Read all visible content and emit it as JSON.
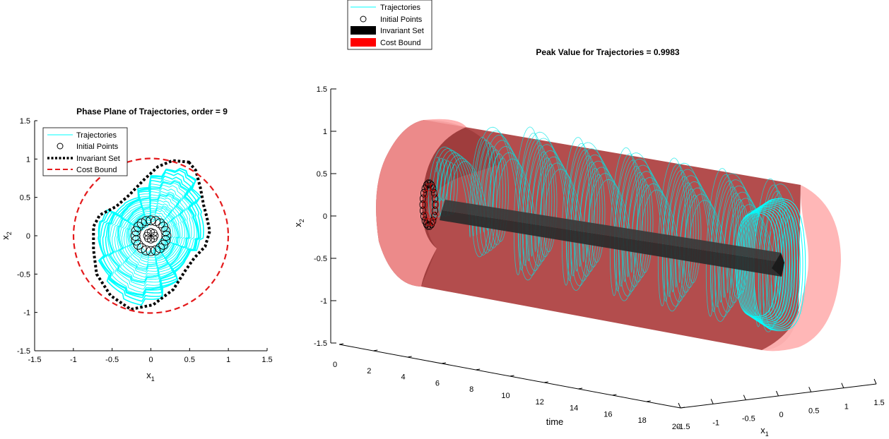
{
  "chart_data": [
    {
      "type": "line",
      "title": "Phase Plane of Trajectories, order = 9",
      "xlabel": "x",
      "xlabel_sub": "1",
      "ylabel": "x",
      "ylabel_sub": "2",
      "xlim": [
        -1.5,
        1.5
      ],
      "ylim": [
        -1.5,
        1.5
      ],
      "xticks": [
        -1.5,
        -1,
        -0.5,
        0,
        0.5,
        1,
        1.5
      ],
      "yticks": [
        -1.5,
        -1,
        -0.5,
        0,
        0.5,
        1,
        1.5
      ],
      "xtick_labels": [
        "-1.5",
        "-1",
        "-0.5",
        "0",
        "0.5",
        "1",
        "1.5"
      ],
      "ytick_labels": [
        "-1.5",
        "-1",
        "-0.5",
        "0",
        "0.5",
        "1",
        "1.5"
      ],
      "grid": false,
      "legend_position": "top-left",
      "series": [
        {
          "name": "Trajectories",
          "color": "#00ffff",
          "style": "solid"
        },
        {
          "name": "Initial Points",
          "color": "#000000",
          "style": "circle-marker"
        },
        {
          "name": "Invariant Set",
          "color": "#000000",
          "style": "dotted"
        },
        {
          "name": "Cost Bound",
          "color": "#e41a1c",
          "style": "dashed"
        }
      ],
      "cost_bound_radius": 0.9983,
      "invariant_set_boundary": [
        [
          0.49,
          0.96
        ],
        [
          0.58,
          0.85
        ],
        [
          0.64,
          0.62
        ],
        [
          0.68,
          0.4
        ],
        [
          0.72,
          0.25
        ],
        [
          0.76,
          0.06
        ],
        [
          0.7,
          -0.14
        ],
        [
          0.56,
          -0.29
        ],
        [
          0.44,
          -0.46
        ],
        [
          0.29,
          -0.7
        ],
        [
          0.03,
          -0.9
        ],
        [
          -0.26,
          -0.96
        ],
        [
          -0.52,
          -0.78
        ],
        [
          -0.7,
          -0.5
        ],
        [
          -0.74,
          -0.18
        ],
        [
          -0.74,
          0.12
        ],
        [
          -0.66,
          0.27
        ],
        [
          -0.45,
          0.38
        ],
        [
          -0.28,
          0.53
        ],
        [
          -0.1,
          0.72
        ],
        [
          0.09,
          0.9
        ],
        [
          0.28,
          0.98
        ]
      ],
      "initial_points_ring": {
        "center": [
          0,
          0
        ],
        "radius": 0.2
      },
      "trajectory_outer_limit": 0.92
    },
    {
      "type": "line",
      "title": "Peak Value for Trajectories = 0.9983",
      "xlabel": "time",
      "ylabel": "x",
      "ylabel_sub": "2",
      "zlabel": "x",
      "zlabel_sub": "1",
      "time_ticks": [
        0,
        2,
        4,
        6,
        8,
        10,
        12,
        14,
        16,
        18,
        20
      ],
      "time_tick_labels": [
        "0",
        "2",
        "4",
        "6",
        "8",
        "10",
        "12",
        "14",
        "16",
        "18",
        "20"
      ],
      "x2_ticks": [
        -1.5,
        -1,
        -0.5,
        0,
        0.5,
        1,
        1.5
      ],
      "x2_tick_labels": [
        "-1.5",
        "-1",
        "-0.5",
        "0",
        "0.5",
        "1",
        "1.5"
      ],
      "x1_ticks": [
        -1.5,
        -1,
        -0.5,
        0,
        0.5,
        1,
        1.5
      ],
      "x1_tick_labels": [
        "-1.5",
        "-1",
        "-0.5",
        "0",
        "0.5",
        "1",
        "1.5"
      ],
      "time_range": [
        0,
        20
      ],
      "legend_position": "top-left",
      "series": [
        {
          "name": "Trajectories",
          "color": "#00ffff",
          "style": "solid"
        },
        {
          "name": "Initial Points",
          "color": "#000000",
          "style": "circle-marker"
        },
        {
          "name": "Invariant Set",
          "color": "#000000",
          "style": "patch"
        },
        {
          "name": "Cost Bound",
          "color": "#ff0000",
          "style": "patch"
        }
      ],
      "peak_value": 0.9983
    }
  ]
}
